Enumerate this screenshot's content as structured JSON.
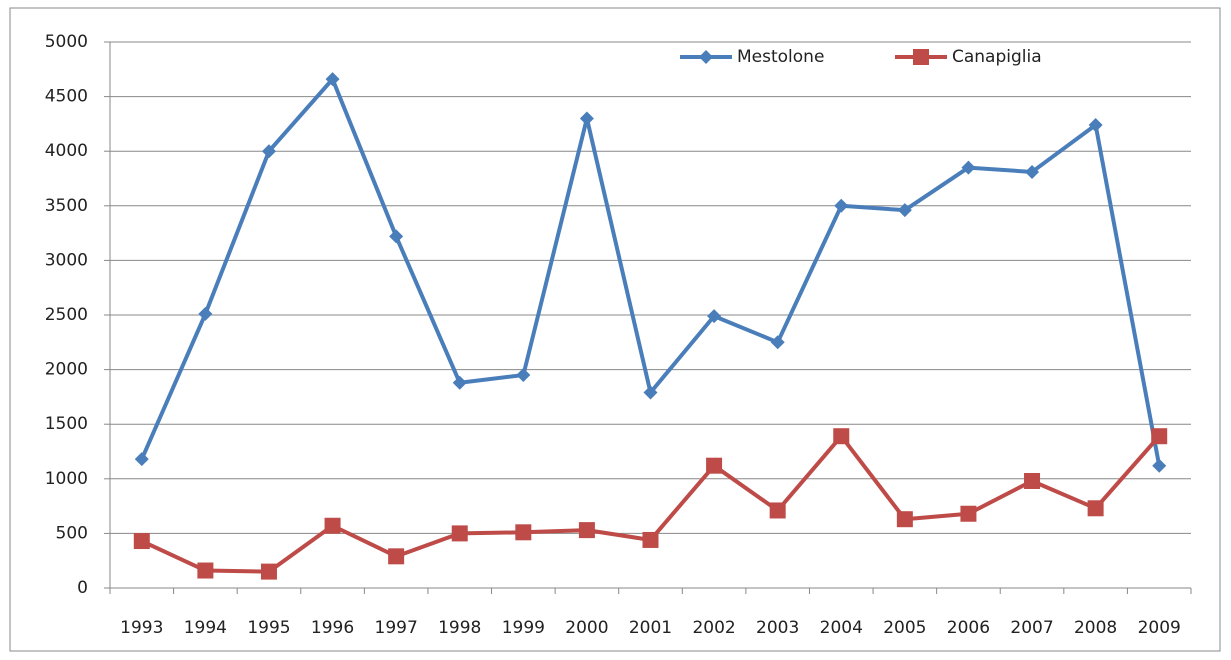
{
  "chart_data": {
    "type": "line",
    "categories": [
      "1993",
      "1994",
      "1995",
      "1996",
      "1997",
      "1998",
      "1999",
      "2000",
      "2001",
      "2002",
      "2003",
      "2004",
      "2005",
      "2006",
      "2007",
      "2008",
      "2009"
    ],
    "series": [
      {
        "name": "Mestolone",
        "color": "#4a7ebb",
        "marker": "diamond",
        "values": [
          1180,
          2510,
          4000,
          4660,
          3220,
          1880,
          1950,
          4300,
          1790,
          2490,
          2250,
          3500,
          3460,
          3850,
          3810,
          4240,
          1120
        ]
      },
      {
        "name": "Canapiglia",
        "color": "#be4b48",
        "marker": "square",
        "values": [
          430,
          160,
          150,
          570,
          290,
          500,
          510,
          530,
          440,
          1120,
          710,
          1390,
          630,
          680,
          980,
          730,
          1390
        ]
      }
    ],
    "ylim": [
      0,
      5000
    ],
    "yticks": [
      0,
      500,
      1000,
      1500,
      2000,
      2500,
      3000,
      3500,
      4000,
      4500,
      5000
    ],
    "grid": true,
    "legend": "top"
  }
}
